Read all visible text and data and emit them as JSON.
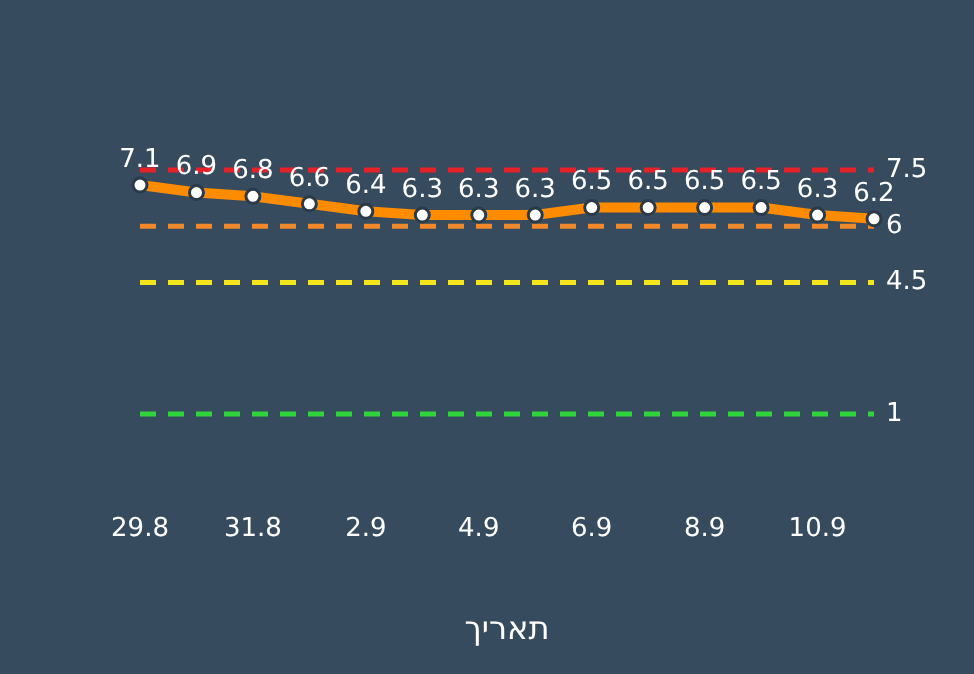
{
  "chart_data": {
    "type": "line",
    "xlabel": "תאריך",
    "categories": [
      "29.8",
      null,
      "31.8",
      null,
      "2.9",
      null,
      "4.9",
      null,
      "6.9",
      null,
      "8.9",
      null,
      "10.9",
      null
    ],
    "series": [
      {
        "color": "#ff8c00",
        "values": [
          7.1,
          6.9,
          6.8,
          6.6,
          6.4,
          6.3,
          6.3,
          6.3,
          6.5,
          6.5,
          6.5,
          6.5,
          6.3,
          6.2
        ]
      }
    ],
    "tick_labels": "x",
    "grid": false,
    "legend": false,
    "marker": "circle",
    "line_style": "solid",
    "data_labels": true,
    "ref_lines": [
      {
        "axis": "y",
        "value": 7.5,
        "label": "7.5",
        "color": "#e8202a",
        "line_style": "dashed"
      },
      {
        "axis": "y",
        "value": 6,
        "label": "6",
        "color": "#f0892a",
        "line_style": "dashed"
      },
      {
        "axis": "y",
        "value": 4.5,
        "label": "4.5",
        "color": "#f5e61b",
        "line_style": "dashed"
      },
      {
        "axis": "y",
        "value": 1,
        "label": "1",
        "color": "#2fd33a",
        "line_style": "dashed"
      }
    ]
  }
}
